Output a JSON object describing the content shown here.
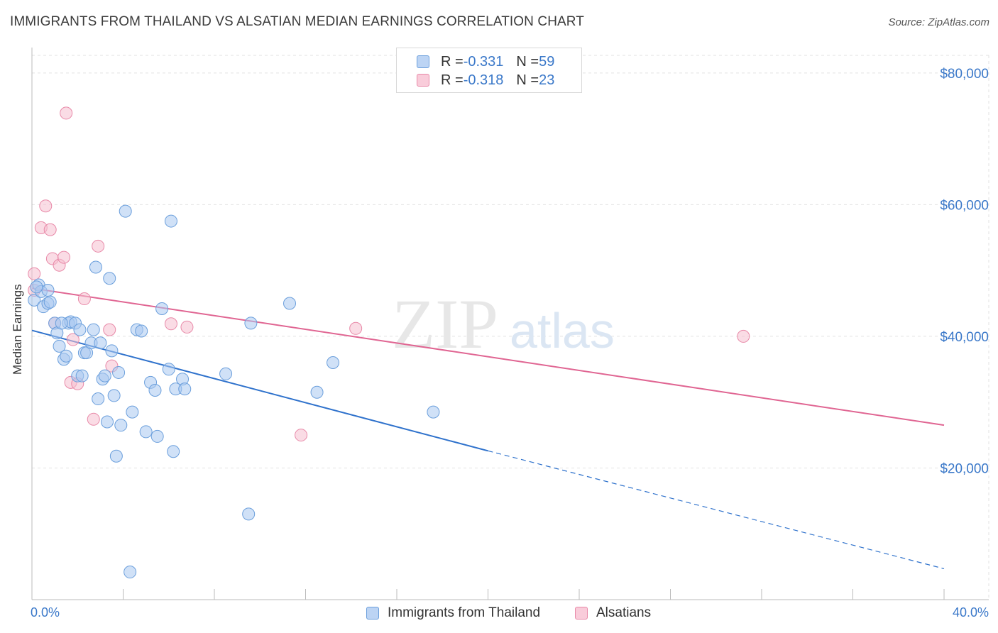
{
  "title": "IMMIGRANTS FROM THAILAND VS ALSATIAN MEDIAN EARNINGS CORRELATION CHART",
  "source": "Source: ZipAtlas.com",
  "watermark": {
    "zip": "ZIP",
    "atlas": "atlas"
  },
  "legend": {
    "rows": [
      {
        "r_label": "R = ",
        "r_value": "-0.331",
        "n_label": "N = ",
        "n_value": "59"
      },
      {
        "r_label": "R = ",
        "r_value": "-0.318",
        "n_label": "N = ",
        "n_value": "23"
      }
    ]
  },
  "colors": {
    "blue_fill": "#a9c8f0",
    "blue_stroke": "#6b9fdc",
    "blue_line": "#2f72cc",
    "pink_fill": "#f6bfd0",
    "pink_stroke": "#e889a8",
    "pink_line": "#e06592",
    "axis_text": "#3a78c9",
    "grid": "#e2e2e2"
  },
  "chart_data": {
    "type": "scatter",
    "title": "IMMIGRANTS FROM THAILAND VS ALSATIAN MEDIAN EARNINGS CORRELATION CHART",
    "xlabel": "",
    "ylabel": "Median Earnings",
    "xlim": [
      0,
      40
    ],
    "ylim": [
      0,
      83000
    ],
    "x_tick_labels": [
      "0.0%",
      "40.0%"
    ],
    "y_ticks": [
      20000,
      40000,
      60000,
      80000
    ],
    "y_tick_labels": [
      "$20,000",
      "$40,000",
      "$60,000",
      "$80,000"
    ],
    "series": [
      {
        "name": "Immigrants from Thailand",
        "color": "blue",
        "r": -0.331,
        "n": 59,
        "points": [
          [
            0.1,
            45500
          ],
          [
            0.3,
            47800
          ],
          [
            0.4,
            46800
          ],
          [
            0.5,
            44500
          ],
          [
            0.7,
            47000
          ],
          [
            0.7,
            45000
          ],
          [
            0.8,
            45200
          ],
          [
            1.0,
            42000
          ],
          [
            1.1,
            40500
          ],
          [
            1.2,
            38500
          ],
          [
            1.4,
            36500
          ],
          [
            1.5,
            37000
          ],
          [
            1.6,
            42000
          ],
          [
            1.7,
            42200
          ],
          [
            1.9,
            42000
          ],
          [
            2.0,
            34000
          ],
          [
            2.1,
            41000
          ],
          [
            2.2,
            34000
          ],
          [
            2.3,
            37500
          ],
          [
            2.4,
            37500
          ],
          [
            2.6,
            39000
          ],
          [
            2.7,
            41000
          ],
          [
            2.8,
            50500
          ],
          [
            2.9,
            30500
          ],
          [
            3.0,
            39000
          ],
          [
            3.1,
            33500
          ],
          [
            3.2,
            34000
          ],
          [
            3.3,
            27000
          ],
          [
            3.4,
            48800
          ],
          [
            3.5,
            37800
          ],
          [
            3.6,
            31000
          ],
          [
            3.7,
            21800
          ],
          [
            3.8,
            34500
          ],
          [
            3.9,
            26500
          ],
          [
            4.1,
            59000
          ],
          [
            4.4,
            28500
          ],
          [
            4.6,
            41000
          ],
          [
            4.8,
            40800
          ],
          [
            5.0,
            25500
          ],
          [
            5.2,
            33000
          ],
          [
            5.4,
            31800
          ],
          [
            5.5,
            24800
          ],
          [
            5.7,
            44200
          ],
          [
            6.0,
            35000
          ],
          [
            6.1,
            57500
          ],
          [
            6.2,
            22500
          ],
          [
            6.3,
            32000
          ],
          [
            6.6,
            33500
          ],
          [
            6.7,
            32000
          ],
          [
            8.5,
            34300
          ],
          [
            9.5,
            13000
          ],
          [
            9.6,
            42000
          ],
          [
            11.3,
            45000
          ],
          [
            12.5,
            31500
          ],
          [
            13.2,
            36000
          ],
          [
            17.6,
            28500
          ],
          [
            4.3,
            4200
          ],
          [
            1.3,
            42000
          ],
          [
            0.2,
            47500
          ]
        ],
        "trend": {
          "x0": 0,
          "y0": 40900,
          "x1": 20,
          "y1": 22600,
          "dash_to_x": 40,
          "dash_to_y": 4700
        }
      },
      {
        "name": "Alsatians",
        "color": "pink",
        "r": -0.318,
        "n": 23,
        "points": [
          [
            0.1,
            49500
          ],
          [
            0.1,
            47000
          ],
          [
            0.4,
            56500
          ],
          [
            0.6,
            59800
          ],
          [
            0.8,
            56200
          ],
          [
            0.9,
            51800
          ],
          [
            1.0,
            42000
          ],
          [
            1.2,
            50800
          ],
          [
            1.4,
            52000
          ],
          [
            1.5,
            73900
          ],
          [
            1.7,
            33000
          ],
          [
            1.8,
            39500
          ],
          [
            2.0,
            32800
          ],
          [
            2.3,
            45700
          ],
          [
            2.7,
            27400
          ],
          [
            2.9,
            53700
          ],
          [
            3.4,
            41000
          ],
          [
            3.5,
            35500
          ],
          [
            6.1,
            41900
          ],
          [
            6.8,
            41400
          ],
          [
            11.8,
            25000
          ],
          [
            14.2,
            41200
          ],
          [
            31.2,
            40000
          ]
        ],
        "trend": {
          "x0": 0,
          "y0": 47300,
          "x1": 40,
          "y1": 26500
        }
      }
    ]
  },
  "bottom_legend": [
    "Immigrants from Thailand",
    "Alsatians"
  ]
}
